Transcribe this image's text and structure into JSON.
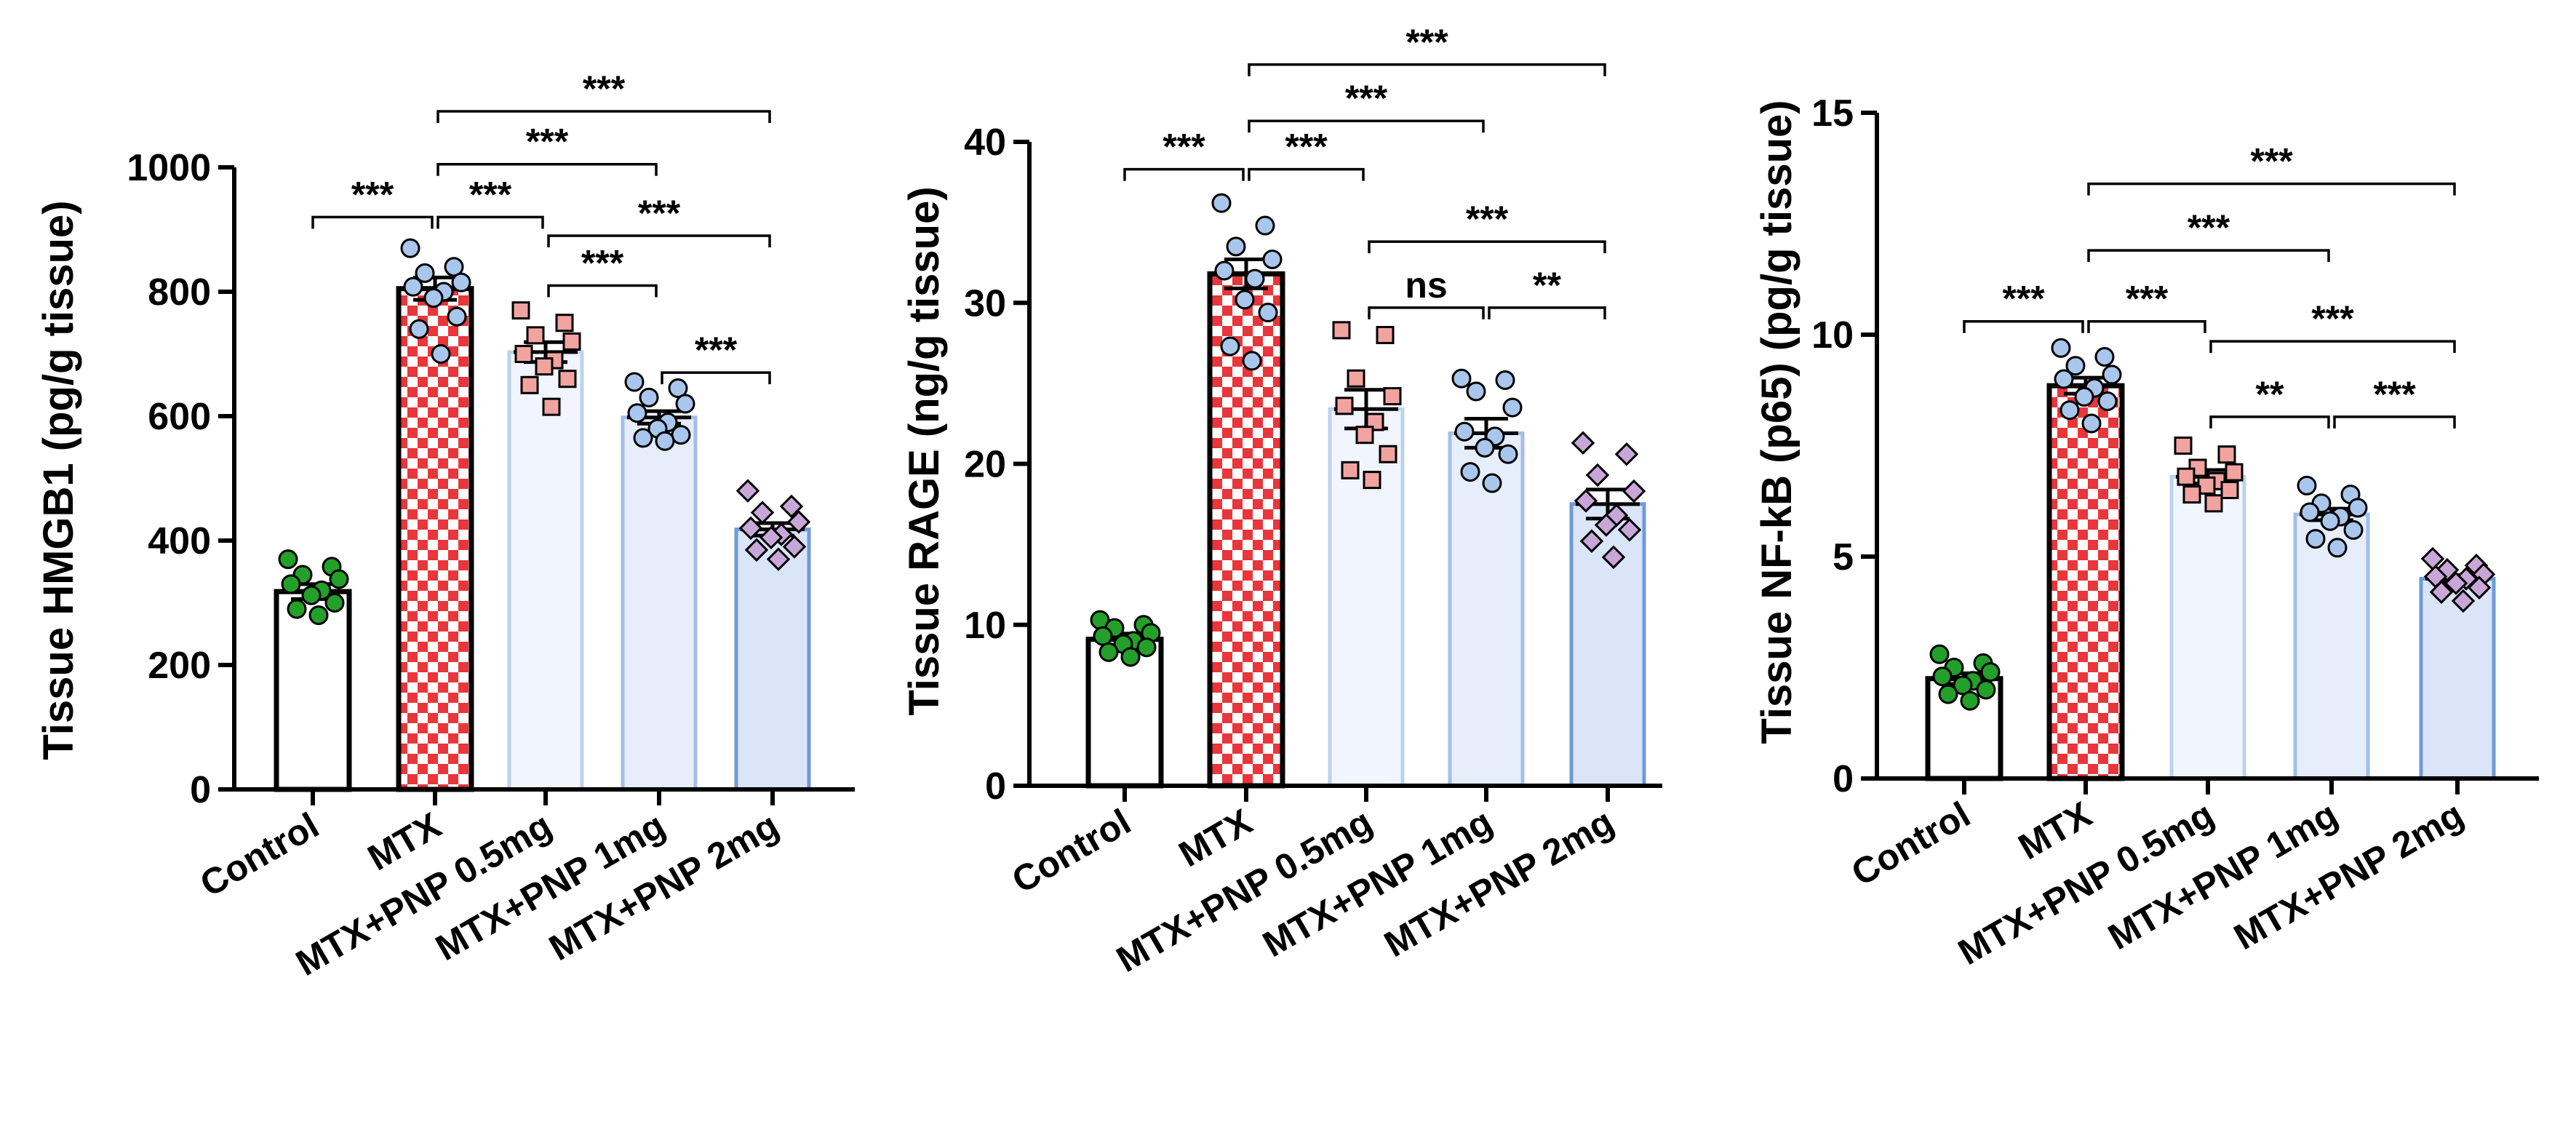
{
  "colors": {
    "control_fill": "#ffffff",
    "control_point": "#22a02a",
    "mtx_check_red": "#e8363b",
    "mtx_check_white": "#ffffff",
    "pnp05_fill": "#f1f5fd",
    "pnp05_stroke": "#bcd2ee",
    "pnp05_point": "#f1a3a0",
    "pnp1_fill": "#e6edfb",
    "pnp1_stroke": "#a3bfe8",
    "pnp1_point": "#a9c6ec",
    "pnp2_fill": "#dbe5fa",
    "pnp2_stroke": "#6f9ad8",
    "pnp2_point": "#c9a6d8"
  },
  "chart_data": [
    {
      "type": "bar",
      "title": "",
      "ylabel": "Tissue HMGB1 (pg/g tissue)",
      "xlabel": "",
      "ylim": [
        0,
        1000
      ],
      "yticks": [
        "0",
        "200",
        "400",
        "600",
        "800",
        "1000"
      ],
      "categories": [
        "Control",
        "MTX",
        "MTX+PNP 0.5mg",
        "MTX+PNP 1mg",
        "MTX+PNP 2mg"
      ],
      "values": [
        318,
        805,
        703,
        598,
        418
      ],
      "sem": [
        12,
        18,
        16,
        10,
        10
      ],
      "points": [
        [
          370,
          358,
          345,
          338,
          330,
          320,
          312,
          300,
          290,
          280
        ],
        [
          870,
          840,
          830,
          815,
          808,
          800,
          790,
          760,
          740,
          700
        ],
        [
          770,
          750,
          730,
          720,
          700,
          690,
          680,
          660,
          650,
          615
        ],
        [
          655,
          645,
          630,
          620,
          605,
          590,
          580,
          570,
          565,
          560
        ],
        [
          480,
          455,
          445,
          430,
          420,
          410,
          405,
          390,
          385,
          370
        ]
      ],
      "brackets": [
        {
          "from": 0,
          "to": 1,
          "label": "***",
          "y": 920
        },
        {
          "from": 1,
          "to": 2,
          "label": "***",
          "y": 920
        },
        {
          "from": 1,
          "to": 3,
          "label": "***",
          "y": 1005
        },
        {
          "from": 1,
          "to": 4,
          "label": "***",
          "y": 1090
        },
        {
          "from": 2,
          "to": 3,
          "label": "***",
          "y": 810
        },
        {
          "from": 2,
          "to": 4,
          "label": "***",
          "y": 890
        },
        {
          "from": 3,
          "to": 4,
          "label": "***",
          "y": 670
        }
      ]
    },
    {
      "type": "bar",
      "title": "",
      "ylabel": "Tissue RAGE (ng/g tissue)",
      "xlabel": "",
      "ylim": [
        0,
        40
      ],
      "yticks": [
        "0",
        "10",
        "20",
        "30",
        "40"
      ],
      "categories": [
        "Control",
        "MTX",
        "MTX+PNP 0.5mg",
        "MTX+PNP 1mg",
        "MTX+PNP 2mg"
      ],
      "values": [
        9.1,
        31.8,
        23.4,
        21.9,
        17.5
      ],
      "sem": [
        0.35,
        0.9,
        1.2,
        0.9,
        0.9
      ],
      "points": [
        [
          10.3,
          10.0,
          9.8,
          9.5,
          9.3,
          9.0,
          8.8,
          8.6,
          8.3,
          8.0
        ],
        [
          36.2,
          34.8,
          33.5,
          32.7,
          32.0,
          31.5,
          30.2,
          29.4,
          27.3,
          26.4
        ],
        [
          28.3,
          28.0,
          25.3,
          24.2,
          23.6,
          22.6,
          21.8,
          20.6,
          19.6,
          19.0
        ],
        [
          25.3,
          25.2,
          24.5,
          23.5,
          22.0,
          21.7,
          21.0,
          20.6,
          19.5,
          18.8
        ],
        [
          21.3,
          20.6,
          19.3,
          18.3,
          17.7,
          16.8,
          16.2,
          15.9,
          15.2,
          14.2
        ]
      ],
      "brackets": [
        {
          "from": 0,
          "to": 1,
          "label": "***",
          "y": 38.3
        },
        {
          "from": 1,
          "to": 2,
          "label": "***",
          "y": 38.3
        },
        {
          "from": 1,
          "to": 3,
          "label": "***",
          "y": 41.3
        },
        {
          "from": 1,
          "to": 4,
          "label": "***",
          "y": 44.8
        },
        {
          "from": 2,
          "to": 4,
          "label": "***",
          "y": 33.8
        },
        {
          "from": 2,
          "to": 3,
          "label": "ns",
          "y": 29.7
        },
        {
          "from": 3,
          "to": 4,
          "label": "**",
          "y": 29.7
        }
      ]
    },
    {
      "type": "bar",
      "title": "",
      "ylabel": "Tissue NF-kB (p65) (pg/g tissue)",
      "xlabel": "",
      "ylim": [
        0,
        15
      ],
      "yticks": [
        "0",
        "5",
        "10",
        "15"
      ],
      "categories": [
        "Control",
        "MTX",
        "MTX+PNP 0.5mg",
        "MTX+PNP 1mg",
        "MTX+PNP 2mg"
      ],
      "values": [
        2.25,
        8.85,
        6.8,
        5.95,
        4.5
      ],
      "sem": [
        0.12,
        0.18,
        0.15,
        0.13,
        0.08
      ],
      "points": [
        [
          2.8,
          2.6,
          2.5,
          2.4,
          2.3,
          2.2,
          2.1,
          2.0,
          1.9,
          1.75
        ],
        [
          9.7,
          9.5,
          9.3,
          9.1,
          9.0,
          8.8,
          8.6,
          8.5,
          8.3,
          8.0
        ],
        [
          7.5,
          7.3,
          7.0,
          6.9,
          6.8,
          6.7,
          6.6,
          6.5,
          6.4,
          6.2
        ],
        [
          6.6,
          6.4,
          6.2,
          6.1,
          6.0,
          5.9,
          5.8,
          5.6,
          5.4,
          5.2
        ],
        [
          4.95,
          4.8,
          4.7,
          4.6,
          4.55,
          4.5,
          4.4,
          4.3,
          4.2,
          4.0
        ]
      ],
      "brackets": [
        {
          "from": 0,
          "to": 1,
          "label": "***",
          "y": 10.3
        },
        {
          "from": 1,
          "to": 2,
          "label": "***",
          "y": 10.3
        },
        {
          "from": 1,
          "to": 3,
          "label": "***",
          "y": 11.9
        },
        {
          "from": 1,
          "to": 4,
          "label": "***",
          "y": 13.4
        },
        {
          "from": 2,
          "to": 4,
          "label": "***",
          "y": 9.85
        },
        {
          "from": 2,
          "to": 3,
          "label": "**",
          "y": 8.15
        },
        {
          "from": 3,
          "to": 4,
          "label": "***",
          "y": 8.15
        }
      ]
    }
  ]
}
